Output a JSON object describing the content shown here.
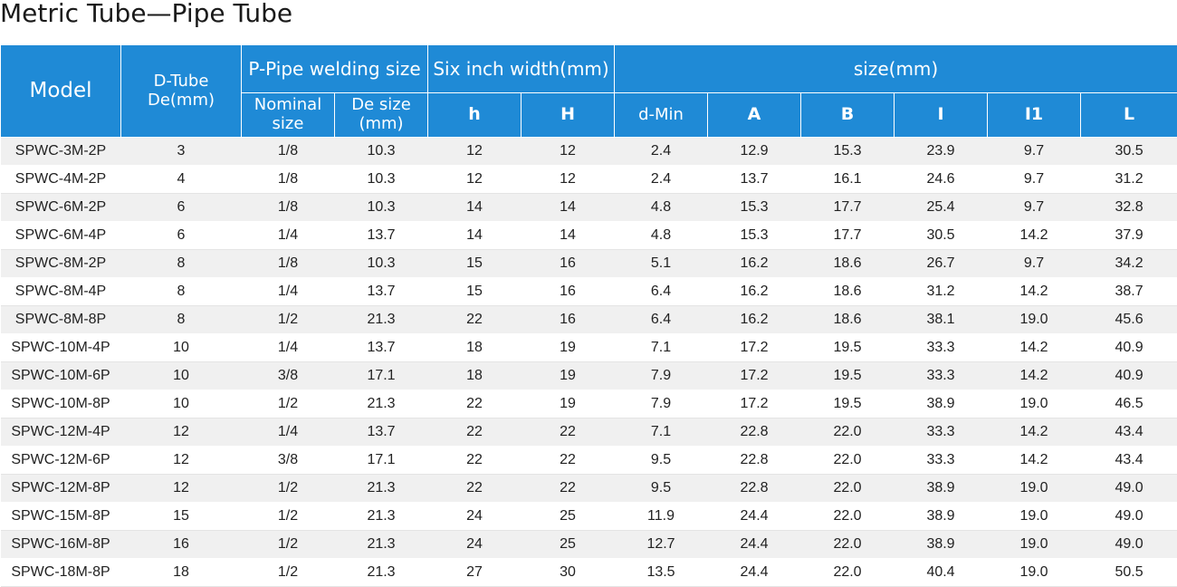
{
  "title": "Metric Tube—Pipe Tube",
  "headers": {
    "model": "Model",
    "d_tube": "D-Tube De(mm)",
    "p_pipe": "P-Pipe welding size",
    "six_inch": "Six inch width(mm)",
    "size": "size(mm)",
    "nominal": "Nominal size",
    "de_size": "De size (mm)",
    "h_small": "h",
    "H": "H",
    "d_min": "d-Min",
    "A": "A",
    "B": "B",
    "I": "I",
    "I1": "I1",
    "L": "L"
  },
  "rows": [
    [
      "SPWC-3M-2P",
      "3",
      "1/8",
      "10.3",
      "12",
      "12",
      "2.4",
      "12.9",
      "15.3",
      "23.9",
      "9.7",
      "30.5"
    ],
    [
      "SPWC-4M-2P",
      "4",
      "1/8",
      "10.3",
      "12",
      "12",
      "2.4",
      "13.7",
      "16.1",
      "24.6",
      "9.7",
      "31.2"
    ],
    [
      "SPWC-6M-2P",
      "6",
      "1/8",
      "10.3",
      "14",
      "14",
      "4.8",
      "15.3",
      "17.7",
      "25.4",
      "9.7",
      "32.8"
    ],
    [
      "SPWC-6M-4P",
      "6",
      "1/4",
      "13.7",
      "14",
      "14",
      "4.8",
      "15.3",
      "17.7",
      "30.5",
      "14.2",
      "37.9"
    ],
    [
      "SPWC-8M-2P",
      "8",
      "1/8",
      "10.3",
      "15",
      "16",
      "5.1",
      "16.2",
      "18.6",
      "26.7",
      "9.7",
      "34.2"
    ],
    [
      "SPWC-8M-4P",
      "8",
      "1/4",
      "13.7",
      "15",
      "16",
      "6.4",
      "16.2",
      "18.6",
      "31.2",
      "14.2",
      "38.7"
    ],
    [
      "SPWC-8M-8P",
      "8",
      "1/2",
      "21.3",
      "22",
      "16",
      "6.4",
      "16.2",
      "18.6",
      "38.1",
      "19.0",
      "45.6"
    ],
    [
      "SPWC-10M-4P",
      "10",
      "1/4",
      "13.7",
      "18",
      "19",
      "7.1",
      "17.2",
      "19.5",
      "33.3",
      "14.2",
      "40.9"
    ],
    [
      "SPWC-10M-6P",
      "10",
      "3/8",
      "17.1",
      "18",
      "19",
      "7.9",
      "17.2",
      "19.5",
      "33.3",
      "14.2",
      "40.9"
    ],
    [
      "SPWC-10M-8P",
      "10",
      "1/2",
      "21.3",
      "22",
      "19",
      "7.9",
      "17.2",
      "19.5",
      "38.9",
      "19.0",
      "46.5"
    ],
    [
      "SPWC-12M-4P",
      "12",
      "1/4",
      "13.7",
      "22",
      "22",
      "7.1",
      "22.8",
      "22.0",
      "33.3",
      "14.2",
      "43.4"
    ],
    [
      "SPWC-12M-6P",
      "12",
      "3/8",
      "17.1",
      "22",
      "22",
      "9.5",
      "22.8",
      "22.0",
      "33.3",
      "14.2",
      "43.4"
    ],
    [
      "SPWC-12M-8P",
      "12",
      "1/2",
      "21.3",
      "22",
      "22",
      "9.5",
      "22.8",
      "22.0",
      "38.9",
      "19.0",
      "49.0"
    ],
    [
      "SPWC-15M-8P",
      "15",
      "1/2",
      "21.3",
      "24",
      "25",
      "11.9",
      "24.4",
      "22.0",
      "38.9",
      "19.0",
      "49.0"
    ],
    [
      "SPWC-16M-8P",
      "16",
      "1/2",
      "21.3",
      "24",
      "25",
      "12.7",
      "24.4",
      "22.0",
      "38.9",
      "19.0",
      "49.0"
    ],
    [
      "SPWC-18M-8P",
      "18",
      "1/2",
      "21.3",
      "27",
      "30",
      "13.5",
      "24.4",
      "22.0",
      "40.4",
      "19.0",
      "50.5"
    ]
  ],
  "colors": {
    "header_bg": "#1f8ad6",
    "header_text": "#ffffff",
    "row_alt_bg": "#f0f0f0"
  }
}
